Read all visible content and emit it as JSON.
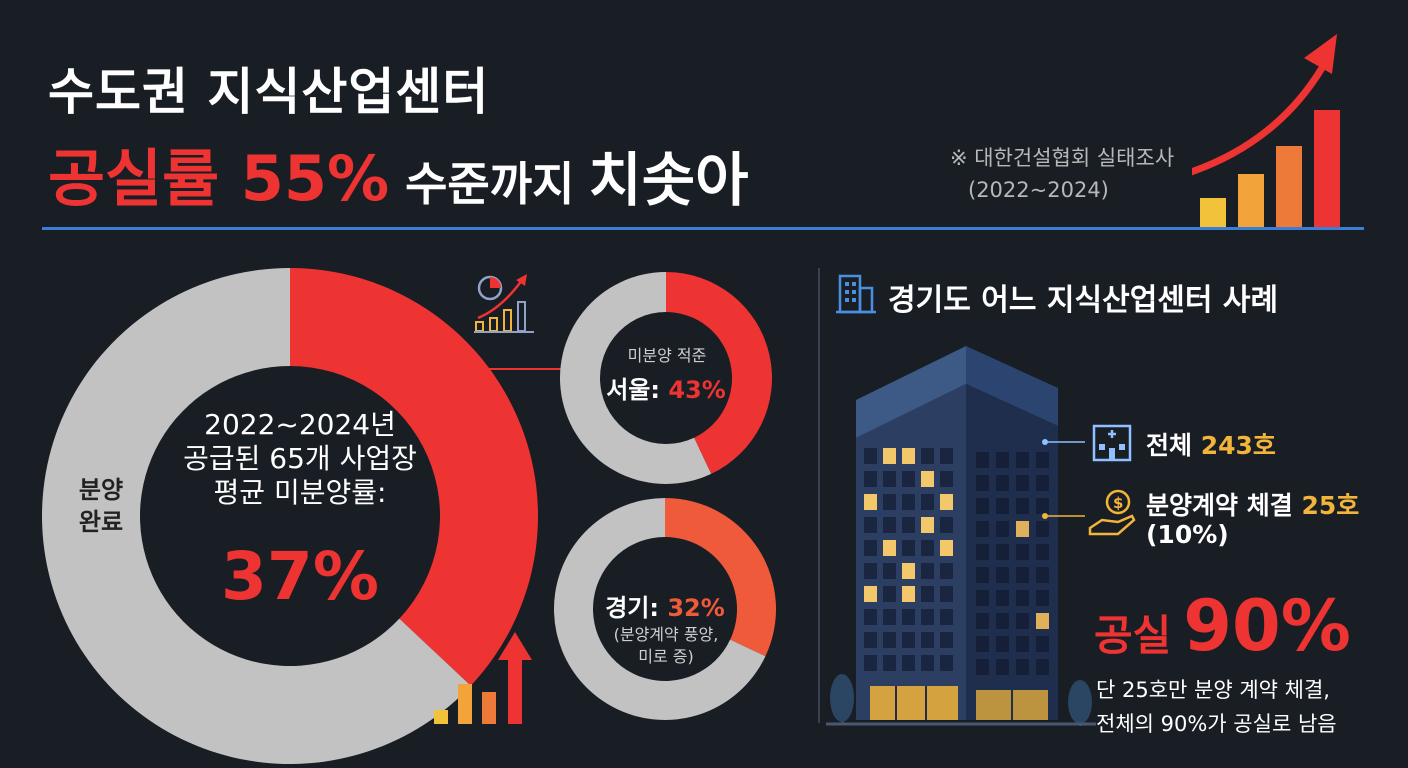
{
  "header": {
    "title_line1": "수도권 지식산업센터",
    "title_part_red": "공실률 55%",
    "title_part_mid": "수준까지",
    "title_part_end": "치솟아",
    "source_line1": "※ 대한건설협회 실태조사",
    "source_line2": "(2022~2024)"
  },
  "main_donut": {
    "line1": "2022~2024년",
    "line2": "공급된 65개 사업장",
    "line3": "평균 미분양률:",
    "value_text": "37%",
    "complete_label_line1": "분양",
    "complete_label_line2": "완료"
  },
  "seoul_donut": {
    "caption": "미분양 적준",
    "label": "서울:",
    "value_text": "43%"
  },
  "gyeonggi_donut": {
    "label": "경기:",
    "value_text": "32%",
    "note_line1": "(분양계약 풍양,",
    "note_line2": "미로 증)"
  },
  "case_study": {
    "title": "경기도 어느 지식산업센터 사례",
    "total_label": "전체",
    "total_value": "243호",
    "contract_label": "분양계약 체결",
    "contract_value": "25호",
    "contract_pct": "(10%)",
    "vacancy_label": "공실",
    "vacancy_value": "90%",
    "desc_line1": "단 25호만 분양 계약 체결,",
    "desc_line2": "전체의 90%가 공실로 남음"
  },
  "colors": {
    "background": "#191d24",
    "accent_red": "#ee3333",
    "orange": "#ee5a3a",
    "gray": "#c2c2c2",
    "gold": "#f2b53a",
    "blue": "#3a7fd5"
  },
  "chart_data": [
    {
      "type": "pie",
      "series": [
        {
          "name": "미분양",
          "values": [
            37,
            63
          ]
        }
      ],
      "categories": [
        "미분양",
        "분양 완료"
      ]
    },
    {
      "type": "pie",
      "series": [
        {
          "name": "서울",
          "values": [
            43,
            57
          ]
        }
      ],
      "categories": [
        "미분양",
        "분양"
      ]
    },
    {
      "type": "pie",
      "series": [
        {
          "name": "경기",
          "values": [
            32,
            68
          ]
        }
      ],
      "categories": [
        "미분양",
        "분양"
      ]
    }
  ]
}
